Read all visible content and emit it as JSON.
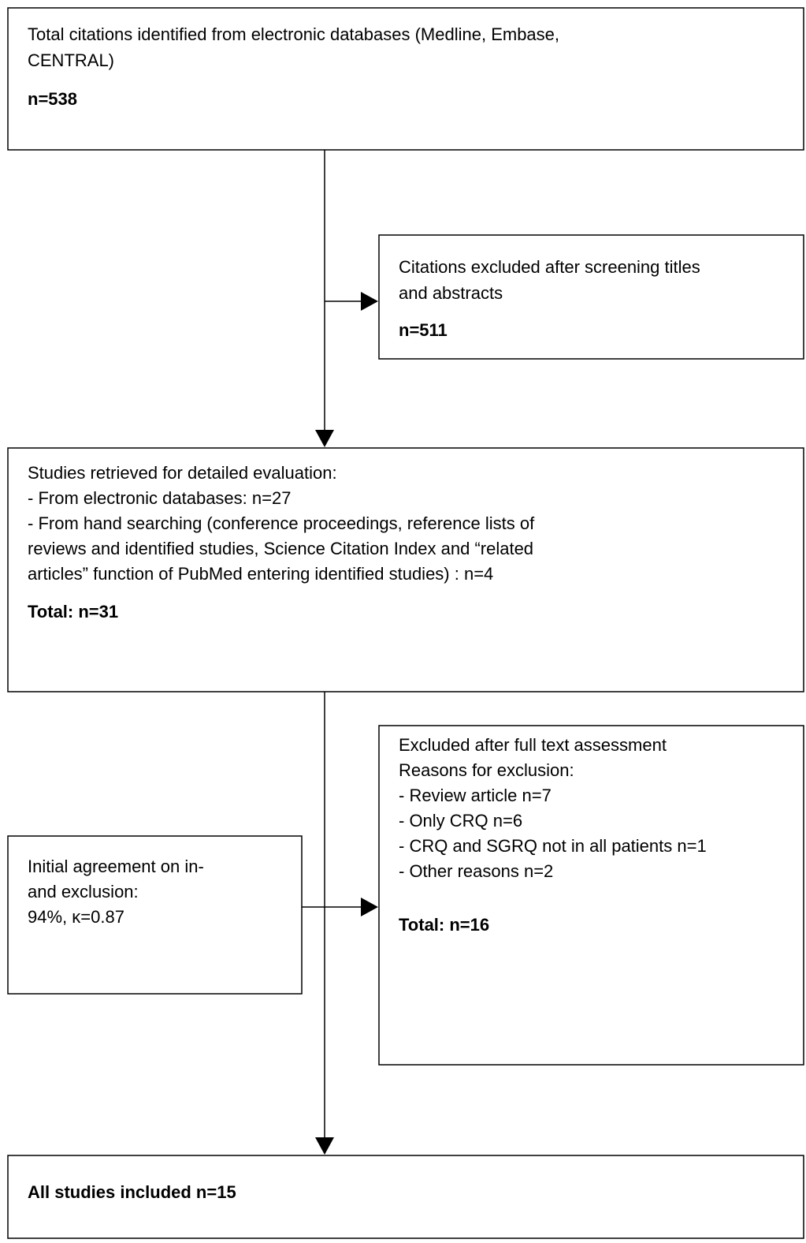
{
  "nodes": [
    {
      "lines": [
        "Total citations identified from electronic databases (Medline, Embase,",
        "CENTRAL)"
      ],
      "emphasis": "n=538"
    },
    {
      "lines": [
        "Citations excluded after screening titles",
        "and abstracts"
      ],
      "emphasis": "n=511"
    },
    {
      "lines": [
        "Studies retrieved for detailed evaluation:",
        "- From electronic databases: n=27",
        "- From hand searching (conference proceedings, reference lists of",
        "reviews and identified studies, Science Citation Index and “related",
        "articles” function of PubMed entering identified studies) : n=4"
      ],
      "emphasis": "Total: n=31"
    },
    {
      "lines": [
        "Initial agreement on in-",
        "and exclusion:",
        "94%,  κ=0.87"
      ]
    },
    {
      "lines": [
        "Excluded after full text assessment",
        "Reasons for exclusion:",
        "- Review article n=7",
        "- Only CRQ n=6",
        "- CRQ and SGRQ not in all patients n=1",
        "- Other reasons n=2"
      ],
      "emphasis": "Total: n=16"
    },
    {
      "lines": [],
      "emphasis": "All studies included n=15"
    }
  ]
}
